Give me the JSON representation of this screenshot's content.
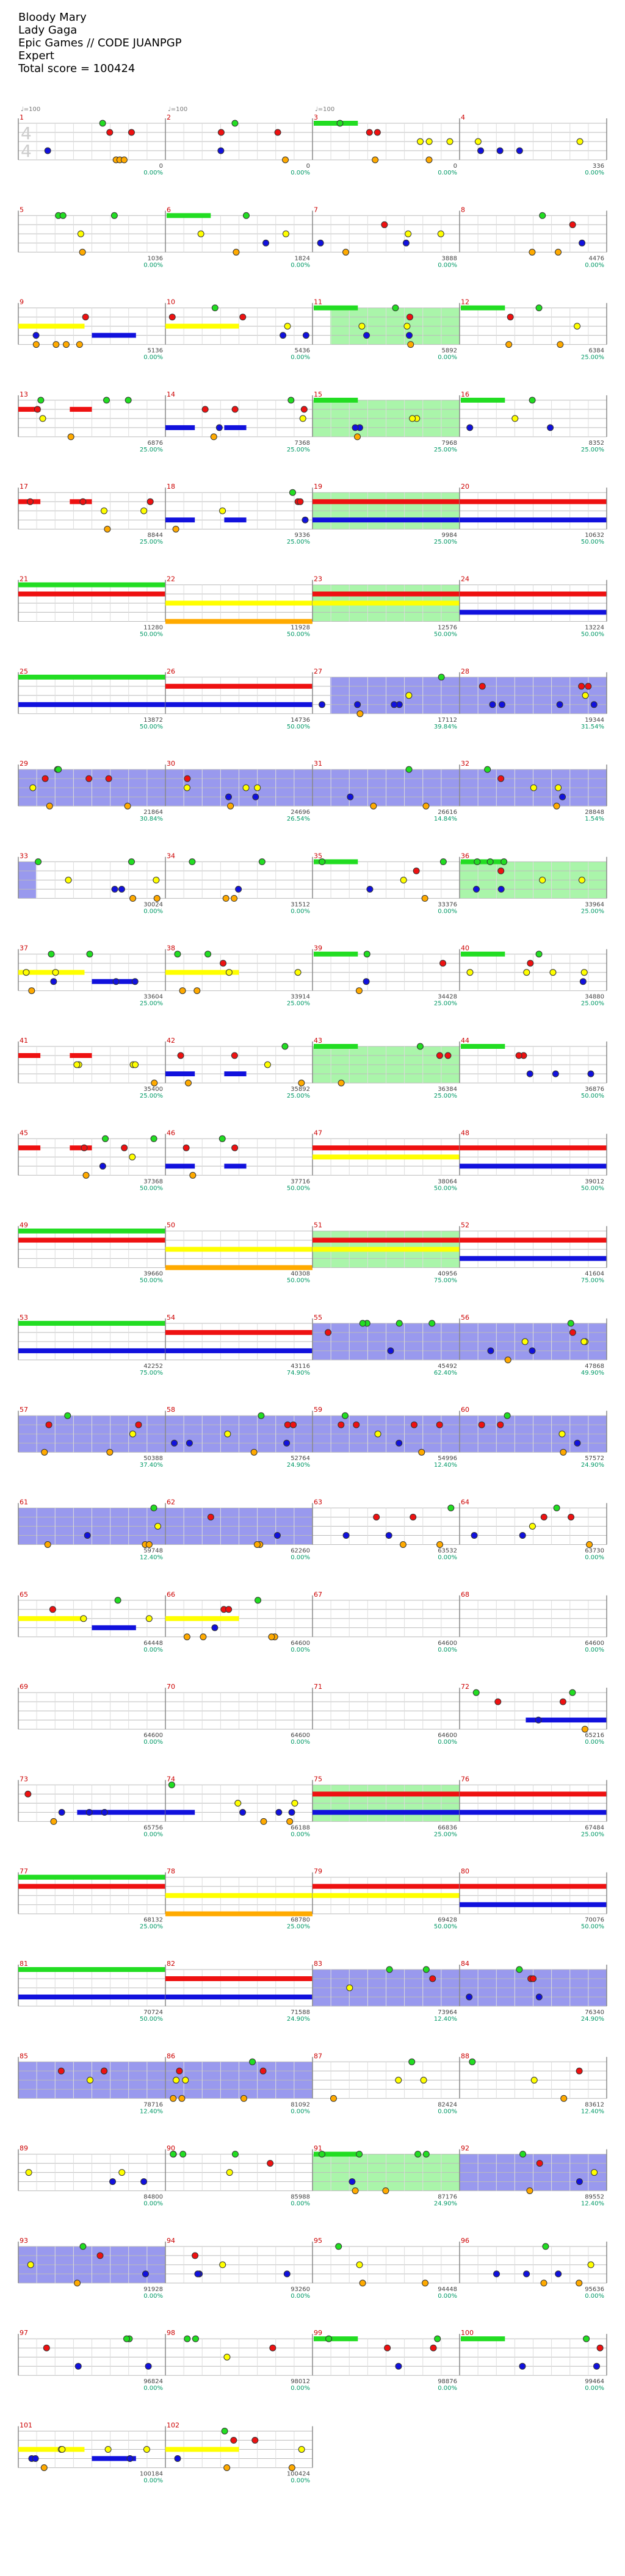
{
  "header": {
    "song": "Bloody Mary",
    "artist": "Lady Gaga",
    "game_line": "Epic Games // CODE JUANPGP",
    "difficulty": "Expert",
    "total_score_label": "Total score = 100424"
  },
  "colors": {
    "green": "#22dd22",
    "red": "#ee1111",
    "yellow": "#ffff00",
    "blue": "#1111dd",
    "orange": "#ffaa00",
    "purple": "#9900cc",
    "sp_green": "#aaf5aa",
    "sp_blue": "#9999ee",
    "measure_num": "#cc0000",
    "score_text": "#444444",
    "percent_text": "#009966",
    "strum_grey": "#999999"
  },
  "first_measure": {
    "time_sig_top": "4",
    "time_sig_bottom": "4",
    "bpm_labels": [
      "♩=100",
      "♩=100",
      "♩=100"
    ]
  },
  "chart_data": {
    "type": "table",
    "title": "Bloody Mary — Expert",
    "rows": [
      {
        "measures": [
          1,
          2,
          3,
          4
        ],
        "scores": [
          "0",
          "0",
          "0",
          "336"
        ],
        "percents": [
          "0.00%",
          "0.00%",
          "0.00%",
          "0.00%"
        ]
      },
      {
        "measures": [
          5,
          6,
          7,
          8
        ],
        "scores": [
          "1036",
          "1824",
          "3888",
          "4476"
        ],
        "percents": [
          "0.00%",
          "0.00%",
          "0.00%",
          "0.00%"
        ]
      },
      {
        "measures": [
          9,
          10,
          11,
          12
        ],
        "scores": [
          "5136",
          "5436",
          "5892",
          "6384"
        ],
        "percents": [
          "0.00%",
          "0.00%",
          "0.00%",
          "25.00%"
        ]
      },
      {
        "measures": [
          13,
          14,
          15,
          16
        ],
        "scores": [
          "6876",
          "7368",
          "7968",
          "8352"
        ],
        "percents": [
          "25.00%",
          "25.00%",
          "25.00%",
          "25.00%"
        ]
      },
      {
        "measures": [
          17,
          18,
          19,
          20
        ],
        "scores": [
          "8844",
          "9336",
          "9984",
          "10632"
        ],
        "percents": [
          "25.00%",
          "25.00%",
          "25.00%",
          "50.00%"
        ]
      },
      {
        "measures": [
          21,
          22,
          23,
          24
        ],
        "scores": [
          "11280",
          "11928",
          "12576",
          "13224"
        ],
        "percents": [
          "50.00%",
          "50.00%",
          "50.00%",
          "50.00%"
        ]
      },
      {
        "measures": [
          25,
          26,
          27,
          28
        ],
        "scores": [
          "13872",
          "14736",
          "17112",
          "19344"
        ],
        "percents": [
          "50.00%",
          "50.00%",
          "39.84%",
          "31.54%"
        ]
      },
      {
        "measures": [
          29,
          30,
          31,
          32
        ],
        "scores": [
          "21864",
          "24696",
          "26616",
          "28848"
        ],
        "percents": [
          "30.84%",
          "26.54%",
          "14.84%",
          "1.54%"
        ]
      },
      {
        "measures": [
          33,
          34,
          35,
          36
        ],
        "scores": [
          "30024",
          "31512",
          "33376",
          "33964"
        ],
        "percents": [
          "0.00%",
          "0.00%",
          "0.00%",
          "25.00%"
        ]
      },
      {
        "measures": [
          37,
          38,
          39,
          40
        ],
        "scores": [
          "33604",
          "33914",
          "34428",
          "34880"
        ],
        "percents": [
          "25.00%",
          "25.00%",
          "25.00%",
          "25.00%"
        ]
      },
      {
        "measures": [
          41,
          42,
          43,
          44
        ],
        "scores": [
          "35400",
          "35892",
          "36384",
          "36876"
        ],
        "percents": [
          "25.00%",
          "25.00%",
          "25.00%",
          "50.00%"
        ]
      },
      {
        "measures": [
          45,
          46,
          47,
          48
        ],
        "scores": [
          "37368",
          "37716",
          "38064",
          "39012"
        ],
        "percents": [
          "50.00%",
          "50.00%",
          "50.00%",
          "50.00%"
        ]
      },
      {
        "measures": [
          49,
          50,
          51,
          52
        ],
        "scores": [
          "39660",
          "40308",
          "40956",
          "41604"
        ],
        "percents": [
          "50.00%",
          "50.00%",
          "75.00%",
          "75.00%"
        ]
      },
      {
        "measures": [
          53,
          54,
          55,
          56
        ],
        "scores": [
          "42252",
          "43116",
          "45492",
          "47868"
        ],
        "percents": [
          "75.00%",
          "74.90%",
          "62.40%",
          "49.90%"
        ]
      },
      {
        "measures": [
          57,
          58,
          59,
          60
        ],
        "scores": [
          "50388",
          "52764",
          "54996",
          "57572"
        ],
        "percents": [
          "37.40%",
          "24.90%",
          "12.40%",
          "24.90%"
        ]
      },
      {
        "measures": [
          61,
          62,
          63,
          64
        ],
        "scores": [
          "59748",
          "62260",
          "63532",
          "63730"
        ],
        "percents": [
          "12.40%",
          "0.00%",
          "0.00%",
          "0.00%"
        ]
      },
      {
        "measures": [
          65,
          66,
          67,
          68
        ],
        "scores": [
          "64448",
          "64600",
          "64600",
          "64600"
        ],
        "percents": [
          "0.00%",
          "0.00%",
          "0.00%",
          "0.00%"
        ]
      },
      {
        "measures": [
          69,
          70,
          71,
          72
        ],
        "scores": [
          "64600",
          "64600",
          "64600",
          "65216"
        ],
        "percents": [
          "0.00%",
          "0.00%",
          "0.00%",
          "0.00%"
        ]
      },
      {
        "measures": [
          73,
          74,
          75,
          76
        ],
        "scores": [
          "65756",
          "66188",
          "66836",
          "67484"
        ],
        "percents": [
          "0.00%",
          "0.00%",
          "25.00%",
          "25.00%"
        ]
      },
      {
        "measures": [
          77,
          78,
          79,
          80
        ],
        "scores": [
          "68132",
          "68780",
          "69428",
          "70076"
        ],
        "percents": [
          "25.00%",
          "25.00%",
          "50.00%",
          "50.00%"
        ]
      },
      {
        "measures": [
          81,
          82,
          83,
          84
        ],
        "scores": [
          "70724",
          "71588",
          "73964",
          "76340"
        ],
        "percents": [
          "50.00%",
          "24.90%",
          "12.40%",
          "24.90%"
        ]
      },
      {
        "measures": [
          85,
          86,
          87,
          88
        ],
        "scores": [
          "78716",
          "81092",
          "82424",
          "83612"
        ],
        "percents": [
          "12.40%",
          "0.00%",
          "0.00%",
          "12.40%"
        ]
      },
      {
        "measures": [
          89,
          90,
          91,
          92
        ],
        "scores": [
          "84800",
          "85988",
          "87176",
          "89552"
        ],
        "percents": [
          "0.00%",
          "0.00%",
          "24.90%",
          "12.40%"
        ]
      },
      {
        "measures": [
          93,
          94,
          95,
          96
        ],
        "scores": [
          "91928",
          "93260",
          "94448",
          "95636"
        ],
        "percents": [
          "0.00%",
          "0.00%",
          "0.00%",
          "0.00%"
        ]
      },
      {
        "measures": [
          97,
          98,
          99,
          100
        ],
        "scores": [
          "96824",
          "98012",
          "98876",
          "99464"
        ],
        "percents": [
          "0.00%",
          "0.00%",
          "0.00%",
          "0.00%"
        ]
      },
      {
        "measures": [
          101,
          102
        ],
        "scores": [
          "100184",
          "100424"
        ],
        "percents": [
          "0.00%",
          "0.00%"
        ]
      }
    ]
  }
}
